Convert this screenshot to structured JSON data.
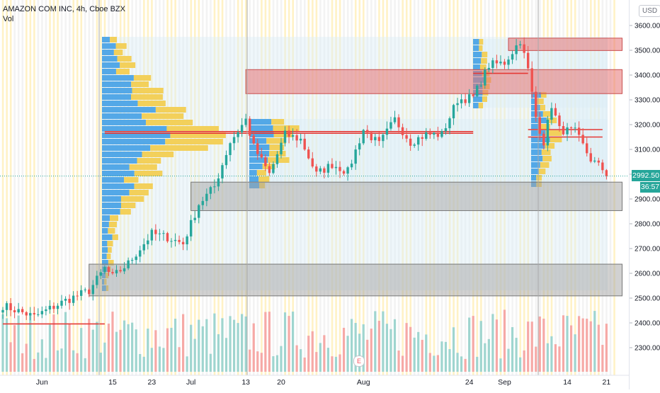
{
  "header": {
    "symbol_line": "AMAZON COM INC, 4h, Cboe BZX",
    "volume_label": "Vol"
  },
  "currency_button": "USD",
  "price_label": "2992.50",
  "countdown_label": "36:57",
  "earnings_marker": "E",
  "colors": {
    "up": "#26a69a",
    "down": "#ef5350",
    "volume_up": "#9fd5cf",
    "volume_down": "#f6a9a6",
    "zone_red": "#e57373",
    "zone_gray": "#a3a3a3",
    "profile_blue": "#4ba3e6",
    "profile_yellow": "#f2cd52",
    "stripe_yellow": "#fff2c6"
  },
  "chart_data": {
    "type": "candlestick",
    "title": "AMAZON COM INC, 4h, Cboe BZX",
    "ylim": [
      2220,
      3640
    ],
    "yticks": [
      2300,
      2400,
      2500,
      2600,
      2700,
      2800,
      2900,
      3000,
      3100,
      3200,
      3300,
      3400,
      3500,
      3600
    ],
    "x_tick_labels": [
      "Jun",
      "15",
      "23",
      "Jul",
      "13",
      "20",
      "Aug",
      "24",
      "Sep",
      "14",
      "21"
    ],
    "x_tick_index": [
      10,
      28,
      38,
      48,
      62,
      71,
      92,
      119,
      128,
      144,
      154
    ],
    "num_bars": 155,
    "last_price": 2992.5,
    "grid": false,
    "anchors": [
      [
        0,
        2470
      ],
      [
        8,
        2425
      ],
      [
        16,
        2490
      ],
      [
        22,
        2530
      ],
      [
        26,
        2620
      ],
      [
        28,
        2585
      ],
      [
        32,
        2640
      ],
      [
        38,
        2760
      ],
      [
        42,
        2745
      ],
      [
        46,
        2720
      ],
      [
        50,
        2880
      ],
      [
        54,
        2950
      ],
      [
        58,
        3130
      ],
      [
        62,
        3220
      ],
      [
        64,
        3110
      ],
      [
        68,
        3000
      ],
      [
        72,
        3160
      ],
      [
        76,
        3140
      ],
      [
        80,
        3000
      ],
      [
        84,
        3040
      ],
      [
        88,
        3010
      ],
      [
        92,
        3180
      ],
      [
        96,
        3120
      ],
      [
        100,
        3220
      ],
      [
        104,
        3130
      ],
      [
        108,
        3160
      ],
      [
        112,
        3160
      ],
      [
        116,
        3300
      ],
      [
        120,
        3310
      ],
      [
        124,
        3440
      ],
      [
        128,
        3450
      ],
      [
        132,
        3540
      ],
      [
        134,
        3420
      ],
      [
        136,
        3230
      ],
      [
        138,
        3130
      ],
      [
        140,
        3280
      ],
      [
        142,
        3180
      ],
      [
        146,
        3170
      ],
      [
        150,
        3060
      ],
      [
        153,
        3020
      ],
      [
        154,
        2992.5
      ]
    ],
    "zones": [
      {
        "color": "red",
        "from_bar": 129,
        "to_bar": 158,
        "price_low": 3499,
        "price_high": 3549
      },
      {
        "color": "red",
        "from_bar": 62,
        "to_bar": 158,
        "price_low": 3325,
        "price_high": 3422
      },
      {
        "color": "gray",
        "from_bar": 48,
        "to_bar": 158,
        "price_low": 2853,
        "price_high": 2968
      },
      {
        "color": "gray",
        "from_bar": 22,
        "to_bar": 158,
        "price_low": 2509,
        "price_high": 2637
      }
    ],
    "lines": [
      {
        "from_bar": 0,
        "to_bar": 26,
        "price": 2396
      },
      {
        "from_bar": 26,
        "to_bar": 120,
        "price": 3165
      },
      {
        "from_bar": 26,
        "to_bar": 120,
        "price": 3172
      },
      {
        "from_bar": 120,
        "to_bar": 134,
        "price": 3407
      },
      {
        "from_bar": 134,
        "to_bar": 153,
        "price": 3180
      },
      {
        "from_bar": 134,
        "to_bar": 153,
        "price": 3150
      }
    ]
  }
}
